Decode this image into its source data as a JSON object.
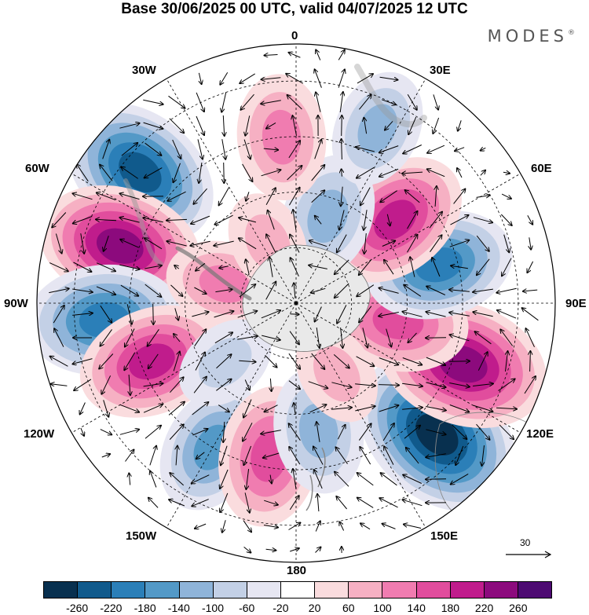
{
  "header": {
    "title": "Base 30/06/2025 00 UTC, valid 04/07/2025 12 UTC",
    "brand": "MODES",
    "brand_mark": "®"
  },
  "map": {
    "projection": "south polar stereographic",
    "longitude_labels": {
      "lon_0": "0",
      "lon_30e": "30E",
      "lon_60e": "60E",
      "lon_90e": "90E",
      "lon_120e": "120E",
      "lon_150e": "150E",
      "lon_180": "180",
      "lon_150w": "150W",
      "lon_120w": "120W",
      "lon_90w": "90W",
      "lon_60w": "60W",
      "lon_30w": "30W"
    },
    "anomaly_centers": [
      {
        "lon": -50,
        "colat": 55,
        "value": -220
      },
      {
        "lon": -72,
        "colat": 50,
        "value": 220
      },
      {
        "lon": -95,
        "colat": 52,
        "value": -200
      },
      {
        "lon": -75,
        "colat": 20,
        "value": 100
      },
      {
        "lon": -112,
        "colat": 42,
        "value": 180
      },
      {
        "lon": -150,
        "colat": 45,
        "value": -140
      },
      {
        "lon": -170,
        "colat": 42,
        "value": 160
      },
      {
        "lon": 170,
        "colat": 35,
        "value": -120
      },
      {
        "lon": 133,
        "colat": 52,
        "value": -260
      },
      {
        "lon": 110,
        "colat": 48,
        "value": 240
      },
      {
        "lon": 100,
        "colat": 28,
        "value": 160
      },
      {
        "lon": 75,
        "colat": 40,
        "value": -180
      },
      {
        "lon": 50,
        "colat": 35,
        "value": 180
      },
      {
        "lon": 20,
        "colat": 25,
        "value": -120
      },
      {
        "lon": 25,
        "colat": 52,
        "value": -100
      },
      {
        "lon": -5,
        "colat": 45,
        "value": 120
      },
      {
        "lon": -25,
        "colat": 18,
        "value": 60
      },
      {
        "lon": -130,
        "colat": 25,
        "value": -60
      },
      {
        "lon": 150,
        "colat": 22,
        "value": 60
      }
    ],
    "reference_vector": {
      "label": "30"
    }
  },
  "colorbar": {
    "colors": [
      "#08304f",
      "#105a8c",
      "#2b7fb8",
      "#5399c7",
      "#8fb4d9",
      "#c3d0e6",
      "#e6e6f2",
      "#ffffff",
      "#fadcde",
      "#f6b0c3",
      "#f07cb0",
      "#e14d9d",
      "#c01c8c",
      "#8c0a7d",
      "#4d0a72"
    ],
    "ticks": [
      "-260",
      "-220",
      "-180",
      "-140",
      "-100",
      "-60",
      "-20",
      "20",
      "60",
      "100",
      "140",
      "180",
      "220",
      "260"
    ]
  }
}
